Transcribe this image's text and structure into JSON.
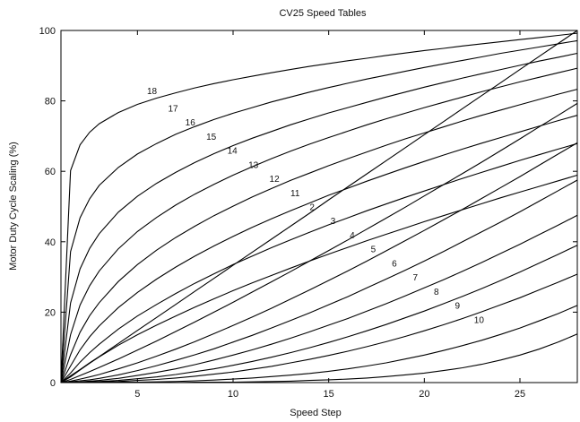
{
  "chart_data": {
    "type": "line",
    "title": "CV25 Speed Tables",
    "xlabel": "Speed Step",
    "ylabel": "Motor Duty Cycle Scaling (%)",
    "xlim": [
      1,
      28
    ],
    "ylim": [
      0,
      100
    ],
    "xticks": [
      5,
      10,
      15,
      20,
      25
    ],
    "yticks": [
      0,
      20,
      40,
      60,
      80,
      100
    ],
    "grid": false,
    "legend": "none",
    "x": [
      1,
      1.5,
      2,
      2.5,
      3,
      4,
      5,
      6,
      7,
      8,
      9,
      10,
      11,
      12,
      13,
      14,
      15,
      16,
      17,
      18,
      19,
      20,
      21,
      22,
      23,
      24,
      25,
      26,
      27,
      28
    ],
    "series": [
      {
        "name": "18",
        "label_at": [
          5.5,
          83
        ],
        "values": [
          0,
          60.2,
          67.5,
          71.1,
          73.5,
          76.7,
          79.0,
          80.8,
          82.3,
          83.7,
          84.9,
          86.0,
          87.0,
          88.0,
          88.9,
          89.8,
          90.6,
          91.4,
          92.1,
          92.9,
          93.6,
          94.3,
          94.9,
          95.6,
          96.2,
          96.8,
          97.4,
          98.0,
          98.6,
          99.2
        ]
      },
      {
        "name": "17",
        "label_at": [
          6.6,
          78
        ],
        "values": [
          0,
          37.2,
          46.8,
          52.2,
          56.0,
          61.1,
          64.9,
          67.9,
          70.5,
          72.7,
          74.7,
          76.5,
          78.1,
          79.7,
          81.1,
          82.5,
          83.8,
          85.0,
          86.2,
          87.3,
          88.4,
          89.5,
          90.5,
          91.5,
          92.5,
          93.5,
          94.4,
          95.3,
          96.2,
          97.1
        ]
      },
      {
        "name": "16",
        "label_at": [
          7.5,
          74
        ],
        "values": [
          0,
          22.6,
          32.3,
          38.1,
          42.3,
          48.4,
          52.9,
          56.6,
          59.7,
          62.5,
          65.0,
          67.3,
          69.4,
          71.3,
          73.2,
          74.9,
          76.6,
          78.1,
          79.6,
          81.1,
          82.5,
          83.9,
          85.2,
          86.5,
          87.7,
          88.9,
          90.1,
          91.3,
          92.4,
          93.5
        ]
      },
      {
        "name": "15",
        "label_at": [
          8.6,
          70
        ],
        "values": [
          0,
          13.6,
          22.0,
          27.5,
          31.7,
          38.0,
          42.9,
          46.9,
          50.4,
          53.5,
          56.3,
          58.9,
          61.3,
          63.6,
          65.7,
          67.7,
          69.6,
          71.4,
          73.2,
          74.9,
          76.5,
          78.1,
          79.6,
          81.1,
          82.6,
          84.0,
          85.4,
          86.7,
          88.0,
          89.3
        ]
      },
      {
        "name": "14",
        "label_at": [
          9.7,
          66
        ],
        "values": [
          0,
          7.9,
          14.3,
          19.0,
          22.7,
          28.7,
          33.5,
          37.6,
          41.2,
          44.4,
          47.4,
          50.1,
          52.7,
          55.1,
          57.4,
          59.5,
          61.6,
          63.6,
          65.5,
          67.4,
          69.2,
          70.9,
          72.6,
          74.3,
          75.9,
          77.4,
          78.9,
          80.4,
          81.9,
          83.3
        ]
      },
      {
        "name": "13",
        "label_at": [
          10.8,
          62
        ],
        "values": [
          0,
          4.7,
          9.3,
          13.0,
          16.1,
          21.3,
          25.6,
          29.4,
          32.8,
          35.9,
          38.8,
          41.5,
          44.1,
          46.5,
          48.8,
          51.0,
          53.2,
          55.2,
          57.2,
          59.1,
          61.0,
          62.8,
          64.6,
          66.3,
          68.0,
          69.6,
          71.2,
          72.8,
          74.4,
          75.9
        ]
      },
      {
        "name": "12",
        "label_at": [
          11.9,
          58
        ],
        "values": [
          0,
          2.7,
          5.8,
          8.5,
          10.9,
          15.2,
          18.9,
          22.2,
          25.3,
          28.2,
          30.9,
          33.5,
          35.9,
          38.3,
          40.5,
          42.7,
          44.8,
          46.8,
          48.8,
          50.7,
          52.6,
          54.4,
          56.2,
          58.0,
          59.7,
          61.4,
          63.1,
          64.7,
          66.3,
          67.9
        ]
      },
      {
        "name": "11",
        "label_at": [
          13.0,
          54
        ],
        "values": [
          0,
          1.6,
          3.6,
          5.5,
          7.3,
          10.6,
          13.6,
          16.3,
          18.9,
          21.4,
          23.8,
          26.1,
          28.3,
          30.4,
          32.5,
          34.5,
          36.5,
          38.4,
          40.3,
          42.1,
          43.9,
          45.7,
          47.4,
          49.1,
          50.8,
          52.5,
          54.1,
          55.7,
          57.3,
          58.9
        ]
      },
      {
        "name": "2",
        "label_at": [
          14.0,
          50
        ],
        "values": [
          0,
          1.9,
          3.7,
          5.6,
          7.4,
          11.1,
          14.8,
          18.5,
          22.2,
          25.9,
          29.6,
          33.3,
          37.0,
          40.7,
          44.4,
          48.1,
          51.9,
          55.6,
          59.3,
          63.0,
          66.7,
          70.4,
          74.1,
          77.8,
          81.5,
          85.2,
          88.9,
          92.6,
          96.3,
          100
        ]
      },
      {
        "name": "3",
        "label_at": [
          15.1,
          46
        ],
        "values": [
          0,
          0.9,
          2.0,
          3.1,
          4.3,
          6.7,
          9.2,
          11.8,
          14.5,
          17.2,
          20.0,
          22.8,
          25.7,
          28.6,
          31.5,
          34.5,
          37.5,
          40.5,
          43.6,
          46.7,
          49.8,
          53.0,
          56.2,
          59.4,
          62.6,
          65.9,
          69.2,
          72.6,
          75.9,
          79.3
        ]
      },
      {
        "name": "4",
        "label_at": [
          16.1,
          42
        ],
        "values": [
          0,
          0.4,
          1.0,
          1.6,
          2.3,
          3.9,
          5.6,
          7.5,
          9.5,
          11.6,
          13.9,
          16.2,
          18.6,
          21.1,
          23.7,
          26.3,
          29.0,
          31.7,
          34.5,
          37.4,
          40.3,
          43.2,
          46.2,
          49.2,
          52.3,
          55.4,
          58.5,
          61.7,
          64.9,
          68.1
        ]
      },
      {
        "name": "5",
        "label_at": [
          17.2,
          38
        ],
        "values": [
          0,
          0.2,
          0.5,
          0.8,
          1.2,
          2.2,
          3.4,
          4.8,
          6.3,
          7.9,
          9.6,
          11.5,
          13.4,
          15.5,
          17.6,
          19.8,
          22.1,
          24.4,
          26.9,
          29.4,
          31.9,
          34.5,
          37.2,
          40.0,
          42.8,
          45.6,
          48.5,
          51.5,
          54.5,
          57.5
        ]
      },
      {
        "name": "6",
        "label_at": [
          18.3,
          34
        ],
        "values": [
          0,
          0.1,
          0.2,
          0.4,
          0.6,
          1.2,
          2.0,
          2.9,
          3.9,
          5.1,
          6.4,
          7.8,
          9.3,
          10.9,
          12.6,
          14.4,
          16.3,
          18.2,
          20.3,
          22.4,
          24.6,
          26.9,
          29.2,
          31.6,
          34.1,
          36.7,
          39.3,
          42.0,
          44.7,
          47.5
        ]
      },
      {
        "name": "7",
        "label_at": [
          19.4,
          30
        ],
        "values": [
          0,
          0.1,
          0.1,
          0.2,
          0.3,
          0.6,
          1.1,
          1.6,
          2.3,
          3.1,
          3.9,
          4.9,
          6.0,
          7.2,
          8.5,
          9.9,
          11.4,
          13.0,
          14.7,
          16.5,
          18.4,
          20.3,
          22.4,
          24.5,
          26.7,
          29.0,
          31.4,
          33.9,
          36.4,
          39.0
        ]
      },
      {
        "name": "8",
        "label_at": [
          20.5,
          26
        ],
        "values": [
          0,
          0.0,
          0.1,
          0.1,
          0.2,
          0.3,
          0.6,
          0.9,
          1.3,
          1.8,
          2.4,
          3.0,
          3.8,
          4.6,
          5.6,
          6.6,
          7.7,
          8.9,
          10.2,
          11.6,
          13.1,
          14.7,
          16.4,
          18.2,
          20.1,
          22.1,
          24.1,
          26.3,
          28.5,
          30.8
        ]
      },
      {
        "name": "9",
        "label_at": [
          21.6,
          22
        ],
        "values": [
          0,
          0.0,
          0.0,
          0.0,
          0.0,
          0.1,
          0.1,
          0.2,
          0.3,
          0.5,
          0.7,
          1.0,
          1.3,
          1.7,
          2.1,
          2.6,
          3.2,
          3.9,
          4.7,
          5.6,
          6.7,
          7.8,
          9.1,
          10.5,
          12.0,
          13.7,
          15.5,
          17.5,
          19.6,
          21.9
        ]
      },
      {
        "name": "10",
        "label_at": [
          22.6,
          18
        ],
        "values": [
          0,
          0.0,
          0.0,
          0.0,
          0.0,
          0.0,
          0.0,
          0.0,
          0.0,
          0.1,
          0.1,
          0.1,
          0.2,
          0.3,
          0.4,
          0.6,
          0.8,
          1.0,
          1.3,
          1.7,
          2.2,
          2.7,
          3.4,
          4.2,
          5.2,
          6.4,
          7.8,
          9.5,
          11.5,
          13.8
        ]
      }
    ]
  }
}
